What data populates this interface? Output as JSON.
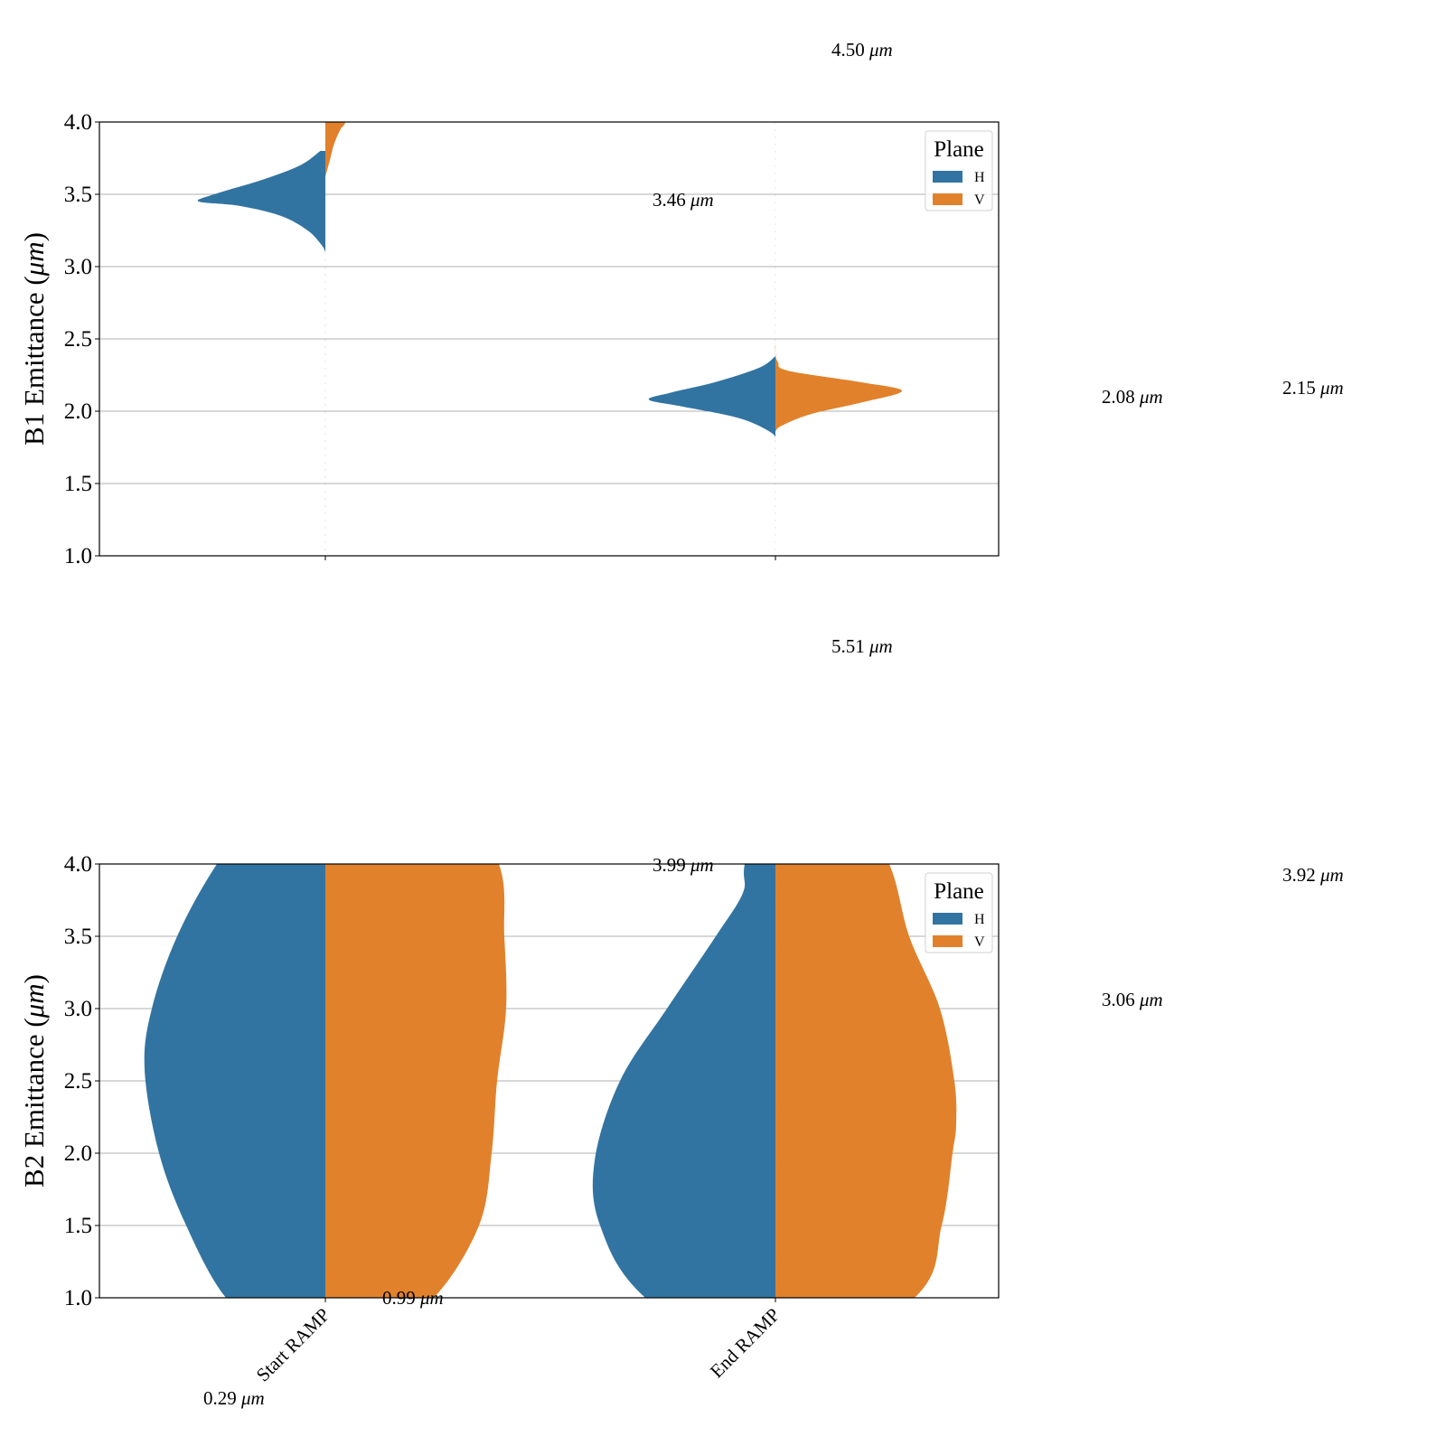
{
  "colors": {
    "H": "#3274a1",
    "V": "#e1812c"
  },
  "chart_data": {
    "type": "violin",
    "categories": [
      "Start RAMP",
      "End RAMP"
    ],
    "legend": {
      "title": "Plane",
      "entries": [
        "H",
        "V"
      ],
      "position": "upper right"
    },
    "grid": "y",
    "split": true,
    "panels": [
      {
        "ylabel": "B1 Emittance ($\\mu m$)",
        "ylim": [
          1.0,
          4.0
        ],
        "yticks": [
          "1.0",
          "1.5",
          "2.0",
          "2.5",
          "3.0",
          "3.5",
          "4.0"
        ],
        "violins": [
          {
            "category": "Start RAMP",
            "plane": "H",
            "min": 3.1,
            "max": 3.8,
            "profile": [
              [
                3.1,
                0.0
              ],
              [
                3.15,
                0.03
              ],
              [
                3.25,
                0.14
              ],
              [
                3.35,
                0.35
              ],
              [
                3.42,
                0.68
              ],
              [
                3.45,
                1.0
              ],
              [
                3.5,
                0.88
              ],
              [
                3.6,
                0.5
              ],
              [
                3.7,
                0.2
              ],
              [
                3.8,
                0.04
              ]
            ]
          },
          {
            "category": "Start RAMP",
            "plane": "V",
            "min": 3.62,
            "max": 4.4,
            "profile": [
              [
                3.62,
                0.0
              ],
              [
                3.75,
                0.04
              ],
              [
                3.85,
                0.07
              ],
              [
                3.95,
                0.12
              ],
              [
                4.0,
                0.16
              ],
              [
                4.2,
                0.25
              ],
              [
                4.4,
                0.3
              ]
            ]
          },
          {
            "category": "End RAMP",
            "plane": "H",
            "min": 1.79,
            "max": 2.38,
            "profile": [
              [
                1.79,
                0.0
              ],
              [
                1.85,
                0.03
              ],
              [
                1.95,
                0.28
              ],
              [
                2.03,
                0.72
              ],
              [
                2.08,
                1.0
              ],
              [
                2.13,
                0.82
              ],
              [
                2.2,
                0.48
              ],
              [
                2.3,
                0.13
              ],
              [
                2.38,
                0.0
              ]
            ]
          },
          {
            "category": "End RAMP",
            "plane": "V",
            "min": 1.86,
            "max": 2.55,
            "profile": [
              [
                1.86,
                0.0
              ],
              [
                1.9,
                0.05
              ],
              [
                1.98,
                0.28
              ],
              [
                2.06,
                0.68
              ],
              [
                2.14,
                1.0
              ],
              [
                2.2,
                0.68
              ],
              [
                2.28,
                0.1
              ],
              [
                2.34,
                0.02
              ],
              [
                2.4,
                0.0
              ],
              [
                2.5,
                0.0
              ],
              [
                2.55,
                0.0
              ]
            ]
          }
        ],
        "annotations": [
          {
            "text": "4.50 μm",
            "value": 4.5
          },
          {
            "text": "3.46 μm",
            "value": 3.46
          },
          {
            "text": "2.08 μm",
            "value": 2.08
          },
          {
            "text": "2.15 μm",
            "value": 2.15
          }
        ]
      },
      {
        "ylabel": "B2 Emittance ($\\mu m$)",
        "ylim": [
          1.0,
          4.0
        ],
        "yticks": [
          "1.0",
          "1.5",
          "2.0",
          "2.5",
          "3.0",
          "3.5",
          "4.0"
        ],
        "violins": [
          {
            "category": "Start RAMP",
            "plane": "H",
            "min": 0.3,
            "max": 5.0,
            "profile": [
              [
                0.3,
                0.0
              ],
              [
                0.7,
                0.25
              ],
              [
                1.0,
                0.55
              ],
              [
                1.5,
                0.77
              ],
              [
                2.0,
                0.92
              ],
              [
                2.58,
                1.0
              ],
              [
                3.0,
                0.96
              ],
              [
                3.5,
                0.82
              ],
              [
                4.0,
                0.6
              ],
              [
                4.5,
                0.3
              ],
              [
                5.0,
                0.05
              ]
            ]
          },
          {
            "category": "Start RAMP",
            "plane": "V",
            "min": 0.2,
            "max": 5.0,
            "profile": [
              [
                0.2,
                0.0
              ],
              [
                0.7,
                0.25
              ],
              [
                1.0,
                0.6
              ],
              [
                1.5,
                0.85
              ],
              [
                2.0,
                0.92
              ],
              [
                2.5,
                0.95
              ],
              [
                3.0,
                1.0
              ],
              [
                3.5,
                0.99
              ],
              [
                4.0,
                0.96
              ],
              [
                4.5,
                0.7
              ],
              [
                5.0,
                0.3
              ]
            ]
          },
          {
            "category": "End RAMP",
            "plane": "H",
            "min": 0.4,
            "max": 5.0,
            "profile": [
              [
                0.4,
                0.0
              ],
              [
                1.0,
                0.72
              ],
              [
                1.5,
                0.97
              ],
              [
                1.95,
                1.0
              ],
              [
                2.5,
                0.86
              ],
              [
                3.0,
                0.6
              ],
              [
                3.5,
                0.33
              ],
              [
                3.8,
                0.18
              ],
              [
                4.0,
                0.17
              ],
              [
                4.5,
                0.08
              ],
              [
                5.0,
                0.03
              ]
            ]
          },
          {
            "category": "End RAMP",
            "plane": "V",
            "min": 0.4,
            "max": 5.0,
            "profile": [
              [
                0.4,
                0.0
              ],
              [
                1.0,
                0.77
              ],
              [
                1.5,
                0.92
              ],
              [
                2.0,
                0.98
              ],
              [
                2.2,
                1.0
              ],
              [
                2.5,
                0.99
              ],
              [
                3.0,
                0.91
              ],
              [
                3.5,
                0.74
              ],
              [
                4.0,
                0.63
              ],
              [
                4.5,
                0.4
              ],
              [
                5.0,
                0.2
              ]
            ]
          }
        ],
        "annotations": [
          {
            "text": "5.51 μm",
            "value": 5.51
          },
          {
            "text": "3.99 μm",
            "value": 3.99
          },
          {
            "text": "3.06 μm",
            "value": 3.06
          },
          {
            "text": "3.92 μm",
            "value": 3.92
          },
          {
            "text": "0.99 μm",
            "value": 0.99
          },
          {
            "text": "0.29 μm",
            "value": 0.29
          }
        ]
      }
    ]
  }
}
